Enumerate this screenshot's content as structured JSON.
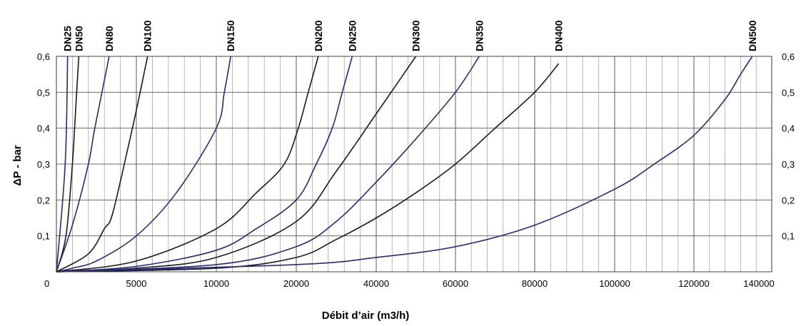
{
  "chart_data": {
    "type": "line",
    "title": "",
    "xlabel": "Débit d’air (m3/h)",
    "ylabel": "ΔP - bar",
    "xlim": [
      0,
      140000
    ],
    "ylim": [
      0,
      0.6
    ],
    "x_ticks": [
      {
        "value": 0,
        "label": "0"
      },
      {
        "value": 5000,
        "label": "5000"
      },
      {
        "value": 10000,
        "label": "10000"
      },
      {
        "value": 20000,
        "label": "20000"
      },
      {
        "value": 40000,
        "label": "40000"
      },
      {
        "value": 60000,
        "label": "60000"
      },
      {
        "value": 80000,
        "label": "80000"
      },
      {
        "value": 100000,
        "label": "100000"
      },
      {
        "value": 120000,
        "label": "120000"
      },
      {
        "value": 140000,
        "label": "140000"
      }
    ],
    "y_ticks": [
      {
        "value": 0.1,
        "label": "0,1"
      },
      {
        "value": 0.2,
        "label": "0,2"
      },
      {
        "value": 0.3,
        "label": "0,3"
      },
      {
        "value": 0.4,
        "label": "0,4"
      },
      {
        "value": 0.5,
        "label": "0,5"
      },
      {
        "value": 0.6,
        "label": "0,6"
      }
    ],
    "grid": true,
    "colors": {
      "black": "#1a1a1a",
      "blue": "#2a2a7a",
      "grid": "#9a9a9a"
    },
    "series": [
      {
        "name": "DN25",
        "color": "#2a2a7a",
        "points": [
          [
            0,
            0
          ],
          [
            550,
            0.3
          ],
          [
            700,
            0.6
          ]
        ]
      },
      {
        "name": "DN50",
        "color": "#1a1a1a",
        "points": [
          [
            0,
            0
          ],
          [
            600,
            0.1
          ],
          [
            1000,
            0.3
          ],
          [
            1200,
            0.45
          ],
          [
            1400,
            0.6
          ]
        ]
      },
      {
        "name": "DN80",
        "color": "#2a2a7a",
        "points": [
          [
            0,
            0
          ],
          [
            1000,
            0.13
          ],
          [
            2000,
            0.3
          ],
          [
            2400,
            0.4
          ],
          [
            3300,
            0.6
          ]
        ]
      },
      {
        "name": "DN100",
        "color": "#1a1a1a",
        "points": [
          [
            0,
            0
          ],
          [
            2000,
            0.05
          ],
          [
            3000,
            0.12
          ],
          [
            3500,
            0.16
          ],
          [
            4500,
            0.35
          ],
          [
            5000,
            0.45
          ],
          [
            5700,
            0.6
          ]
        ]
      },
      {
        "name": "DN150",
        "color": "#2a2a7a",
        "points": [
          [
            0,
            0
          ],
          [
            1000,
            0.01
          ],
          [
            2500,
            0.03
          ],
          [
            5000,
            0.1
          ],
          [
            7500,
            0.22
          ],
          [
            10000,
            0.4
          ],
          [
            11000,
            0.5
          ],
          [
            11800,
            0.6
          ]
        ]
      },
      {
        "name": "DN200",
        "color": "#1a1a1a",
        "points": [
          [
            0,
            0
          ],
          [
            5000,
            0.03
          ],
          [
            10000,
            0.12
          ],
          [
            15000,
            0.22
          ],
          [
            18500,
            0.3
          ],
          [
            20500,
            0.4
          ],
          [
            23000,
            0.5
          ],
          [
            25500,
            0.6
          ]
        ]
      },
      {
        "name": "DN250",
        "color": "#2a2a7a",
        "points": [
          [
            0,
            0
          ],
          [
            5000,
            0.015
          ],
          [
            10000,
            0.06
          ],
          [
            15000,
            0.12
          ],
          [
            20000,
            0.2
          ],
          [
            25000,
            0.3
          ],
          [
            29000,
            0.4
          ],
          [
            31500,
            0.5
          ],
          [
            34000,
            0.6
          ]
        ]
      },
      {
        "name": "DN300",
        "color": "#1a1a1a",
        "points": [
          [
            0,
            0
          ],
          [
            5000,
            0.01
          ],
          [
            10000,
            0.04
          ],
          [
            20000,
            0.14
          ],
          [
            30000,
            0.28
          ],
          [
            40000,
            0.44
          ],
          [
            45000,
            0.52
          ],
          [
            50000,
            0.6
          ]
        ]
      },
      {
        "name": "DN350",
        "color": "#2a2a7a",
        "points": [
          [
            0,
            0
          ],
          [
            10000,
            0.02
          ],
          [
            20000,
            0.07
          ],
          [
            30000,
            0.14
          ],
          [
            40000,
            0.25
          ],
          [
            50000,
            0.37
          ],
          [
            60000,
            0.5
          ],
          [
            66000,
            0.6
          ]
        ]
      },
      {
        "name": "DN400",
        "color": "#1a1a1a",
        "points": [
          [
            0,
            0
          ],
          [
            10000,
            0.01
          ],
          [
            20000,
            0.04
          ],
          [
            30000,
            0.09
          ],
          [
            40000,
            0.15
          ],
          [
            50000,
            0.22
          ],
          [
            60000,
            0.3
          ],
          [
            70000,
            0.4
          ],
          [
            80000,
            0.5
          ],
          [
            86000,
            0.58
          ]
        ]
      },
      {
        "name": "DN500",
        "color": "#2a2a7a",
        "points": [
          [
            0,
            0
          ],
          [
            20000,
            0.02
          ],
          [
            40000,
            0.04
          ],
          [
            60000,
            0.07
          ],
          [
            80000,
            0.13
          ],
          [
            100000,
            0.23
          ],
          [
            110000,
            0.3
          ],
          [
            120000,
            0.38
          ],
          [
            128000,
            0.48
          ],
          [
            132000,
            0.55
          ],
          [
            135000,
            0.6
          ]
        ]
      }
    ]
  }
}
